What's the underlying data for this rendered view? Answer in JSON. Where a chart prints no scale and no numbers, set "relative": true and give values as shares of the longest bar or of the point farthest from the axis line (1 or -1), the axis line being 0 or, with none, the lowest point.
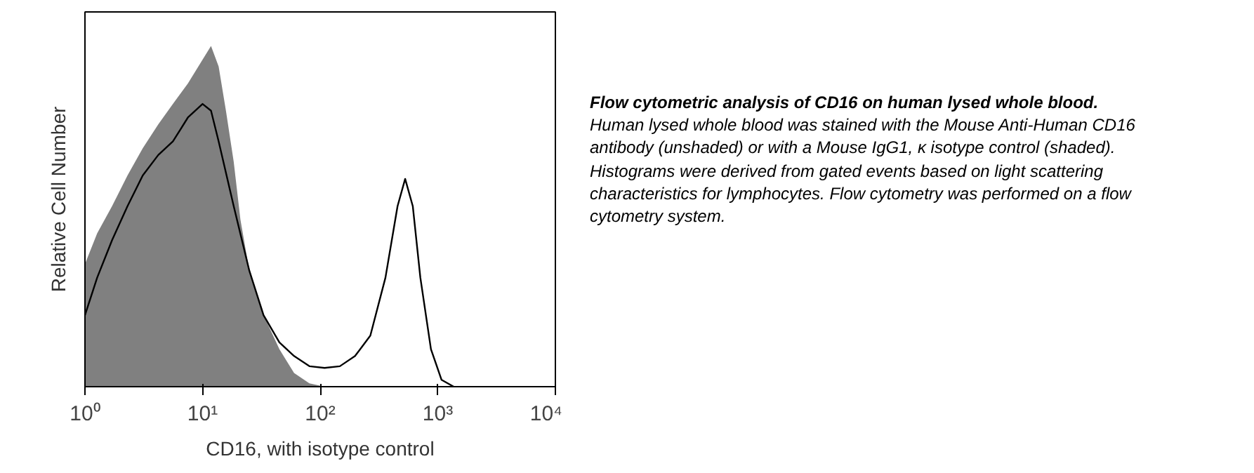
{
  "chart_data": {
    "type": "area",
    "relative": true,
    "log": "x",
    "title": "Flow cytometric analysis of CD16 on human lysed whole blood.",
    "annotations": [
      "Human lysed whole blood was stained with the Mouse Anti-Human CD16 antibody (unshaded) or with a Mouse IgG1, κ isotype control (shaded). Histograms were derived from gated events based on light scattering characteristics for lymphocytes. Flow cytometry was performed on a flow cytometry system."
    ],
    "xlabel": "CD16, with isotype control",
    "ylabel": "Relative Cell Number",
    "xlim": [
      1,
      10000
    ],
    "xticks": [
      {
        "value": 1,
        "label": "10⁰"
      },
      {
        "value": 10,
        "label": "10¹"
      },
      {
        "value": 100,
        "label": "10²"
      },
      {
        "value": 1000,
        "label": "10³"
      },
      {
        "value": 10000,
        "label": "10⁴"
      }
    ],
    "series": [
      {
        "color": "#808080",
        "x": [
          1,
          1.27,
          1.7,
          2.3,
          3.1,
          4.2,
          5.6,
          7.5,
          10,
          11.8,
          13.7,
          15.8,
          18.4,
          21,
          25,
          33,
          45,
          60,
          81,
          109
        ],
        "values": [
          0.36,
          0.45,
          0.53,
          0.62,
          0.7,
          0.77,
          0.83,
          0.89,
          0.96,
          1.0,
          0.94,
          0.81,
          0.66,
          0.49,
          0.34,
          0.21,
          0.11,
          0.04,
          0.01,
          0
        ]
      },
      {
        "type": "line",
        "color": "#000000",
        "x": [
          1,
          1.27,
          1.7,
          2.3,
          3.1,
          4.2,
          5.6,
          7.5,
          10,
          11.8,
          13.7,
          18.4,
          25,
          33,
          45,
          60,
          81,
          109,
          147,
          198,
          267,
          359,
          455,
          528,
          613,
          711,
          875,
          1077,
          1366
        ],
        "values": [
          0.21,
          0.32,
          0.43,
          0.53,
          0.62,
          0.68,
          0.72,
          0.79,
          0.83,
          0.81,
          0.72,
          0.53,
          0.34,
          0.21,
          0.13,
          0.09,
          0.06,
          0.055,
          0.06,
          0.09,
          0.15,
          0.32,
          0.53,
          0.61,
          0.53,
          0.32,
          0.11,
          0.02,
          0
        ]
      }
    ]
  }
}
